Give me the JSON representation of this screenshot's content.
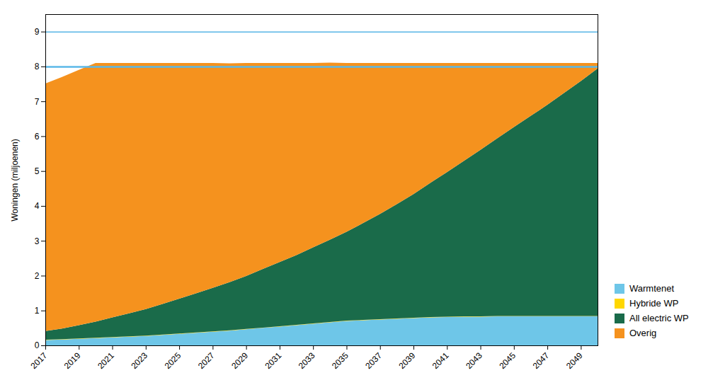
{
  "chart_data": {
    "type": "area",
    "stacked": true,
    "y_label": "Woningen (miljoenen)",
    "x": [
      2017,
      2018,
      2019,
      2020,
      2021,
      2022,
      2023,
      2024,
      2025,
      2026,
      2027,
      2028,
      2029,
      2030,
      2031,
      2032,
      2033,
      2034,
      2035,
      2036,
      2037,
      2038,
      2039,
      2040,
      2041,
      2042,
      2043,
      2044,
      2045,
      2046,
      2047,
      2048,
      2049,
      2050
    ],
    "series": [
      {
        "name": "Warmtenet",
        "color": "#6EC6E8",
        "values": [
          0.15,
          0.17,
          0.19,
          0.21,
          0.23,
          0.25,
          0.27,
          0.3,
          0.33,
          0.36,
          0.39,
          0.42,
          0.46,
          0.5,
          0.54,
          0.58,
          0.62,
          0.66,
          0.7,
          0.72,
          0.74,
          0.76,
          0.78,
          0.8,
          0.81,
          0.82,
          0.82,
          0.83,
          0.83,
          0.83,
          0.83,
          0.83,
          0.83,
          0.83
        ]
      },
      {
        "name": "Hybride WP",
        "color": "#FFD700",
        "values": [
          0.01,
          0.01,
          0.01,
          0.01,
          0.01,
          0.01,
          0.01,
          0.01,
          0.01,
          0.01,
          0.01,
          0.01,
          0.01,
          0.01,
          0.01,
          0.01,
          0.01,
          0.01,
          0.01,
          0.01,
          0.01,
          0.01,
          0.01,
          0.01,
          0.01,
          0.01,
          0.01,
          0.01,
          0.01,
          0.01,
          0.01,
          0.01,
          0.01,
          0.01
        ]
      },
      {
        "name": "All electric WP",
        "color": "#1A6B4A",
        "values": [
          0.25,
          0.3,
          0.38,
          0.46,
          0.56,
          0.66,
          0.76,
          0.88,
          1.0,
          1.12,
          1.25,
          1.38,
          1.52,
          1.68,
          1.84,
          2.0,
          2.18,
          2.36,
          2.55,
          2.78,
          3.02,
          3.28,
          3.55,
          3.85,
          4.15,
          4.46,
          4.78,
          5.1,
          5.42,
          5.74,
          6.06,
          6.4,
          6.74,
          7.1
        ]
      },
      {
        "name": "Overig",
        "color": "#F5921E",
        "values": [
          7.1,
          7.22,
          7.32,
          7.42,
          7.3,
          7.18,
          7.06,
          6.91,
          6.76,
          6.61,
          6.45,
          6.28,
          6.11,
          5.91,
          5.71,
          5.51,
          5.29,
          5.08,
          4.84,
          4.59,
          4.33,
          4.05,
          3.76,
          3.44,
          3.13,
          2.81,
          2.49,
          2.16,
          1.84,
          1.52,
          1.2,
          0.86,
          0.52,
          0.16
        ]
      }
    ],
    "reference_lines": [
      {
        "y": 8.0,
        "color": "#5BB8E8"
      },
      {
        "y": 9.0,
        "color": "#5BB8E8"
      }
    ],
    "xlim": [
      2017,
      2050
    ],
    "xticks": [
      2017,
      2019,
      2021,
      2023,
      2025,
      2027,
      2029,
      2031,
      2033,
      2035,
      2037,
      2039,
      2041,
      2043,
      2045,
      2047,
      2049
    ],
    "ylim": [
      0,
      9.5
    ],
    "yticks": [
      0,
      1,
      2,
      3,
      4,
      5,
      6,
      7,
      8,
      9
    ],
    "grid": true,
    "legend": "lower right"
  }
}
